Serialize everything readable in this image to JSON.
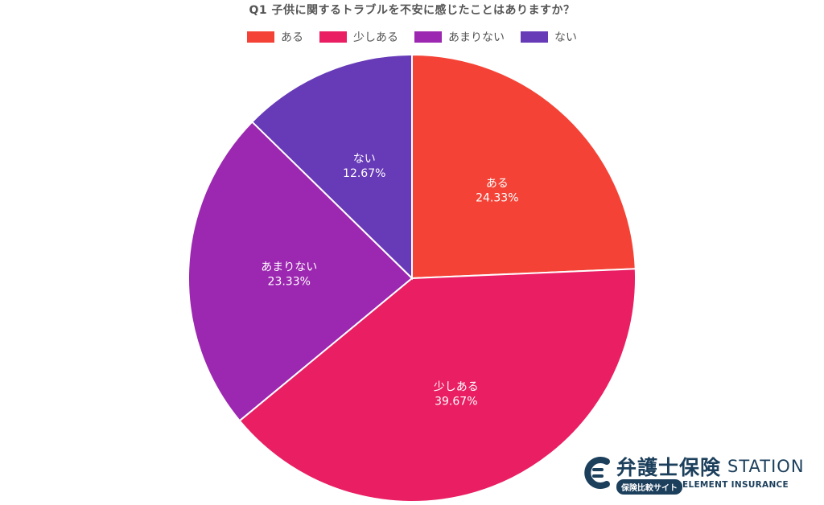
{
  "chart_data": {
    "type": "pie",
    "title": "Q1 子供に関するトラブルを不安に感じたことはありますか？",
    "categories": [
      "ある",
      "少しある",
      "あまりない",
      "ない"
    ],
    "values": [
      24.33,
      39.67,
      23.33,
      12.67
    ],
    "value_labels": [
      "24.33%",
      "39.67%",
      "23.33%",
      "12.67%"
    ],
    "colors": [
      "#f44336",
      "#e91e63",
      "#9c27b0",
      "#673ab7"
    ],
    "legend_position": "top",
    "start_angle": "12 o'clock, clockwise"
  },
  "brand": {
    "name": "弁護士保険",
    "station": "STATION",
    "badge": "保険比較サイト",
    "tagline": "ELEMENT INSURANCE"
  }
}
